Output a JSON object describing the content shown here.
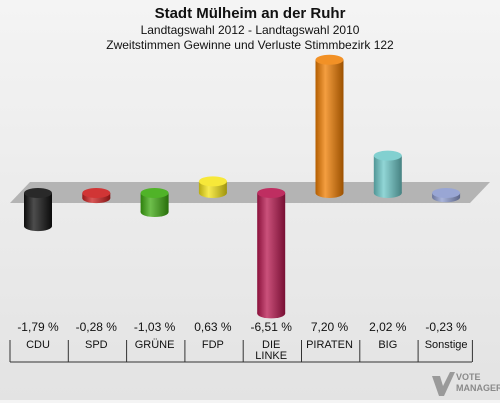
{
  "header": {
    "title": "Stadt Mülheim an der Ruhr",
    "subtitle1": "Landtagswahl 2012 - Landtagswahl 2010",
    "subtitle2": "Zweitstimmen Gewinne und Verluste Stimmbezirk 122"
  },
  "chart_data": {
    "type": "bar",
    "title": "Stadt Mülheim an der Ruhr",
    "subtitle": "Landtagswahl 2012 - Landtagswahl 2010 / Zweitstimmen Gewinne und Verluste Stimmbezirk 122",
    "categories": [
      "CDU",
      "SPD",
      "GRÜNE",
      "FDP",
      "DIE LINKE",
      "PIRATEN",
      "BIG",
      "Sonstige"
    ],
    "category_lines": [
      [
        "CDU"
      ],
      [
        "SPD"
      ],
      [
        "GRÜNE"
      ],
      [
        "FDP"
      ],
      [
        "DIE",
        "LINKE"
      ],
      [
        "PIRATEN"
      ],
      [
        "BIG"
      ],
      [
        "Sonstige"
      ]
    ],
    "values": [
      -1.79,
      -0.28,
      -1.03,
      0.63,
      -6.51,
      7.2,
      2.02,
      -0.23
    ],
    "value_labels": [
      "-1,79 %",
      "-0,28 %",
      "-1,03 %",
      "0,63 %",
      "-6,51 %",
      "7,20 %",
      "2,02 %",
      "-0,23 %"
    ],
    "colors": [
      "#111111",
      "#cc1f1f",
      "#3daa10",
      "#f5e416",
      "#b8174f",
      "#f07d00",
      "#6cc8c8",
      "#8e9ccf"
    ],
    "unit": "%"
  },
  "logo": {
    "line1": "VOTE",
    "line2": "MANAGER"
  }
}
